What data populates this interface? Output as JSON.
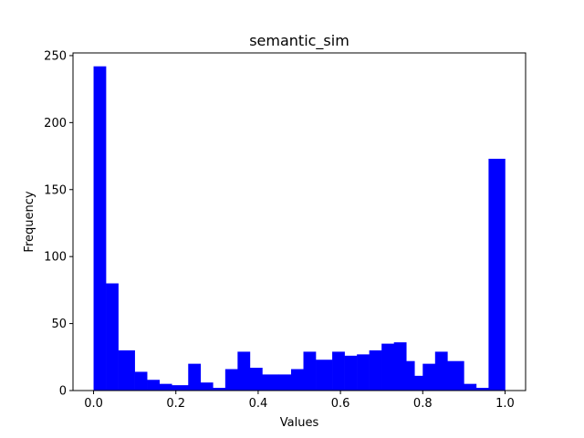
{
  "chart_data": {
    "type": "bar",
    "title": "semantic_sim",
    "xlabel": "Values",
    "ylabel": "Frequency",
    "xlim": [
      -0.05,
      1.05
    ],
    "ylim": [
      0,
      252
    ],
    "xticks": [
      0.0,
      0.2,
      0.4,
      0.6,
      0.8,
      1.0
    ],
    "xtick_labels": [
      "0.0",
      "0.2",
      "0.4",
      "0.6",
      "0.8",
      "1.0"
    ],
    "yticks": [
      0,
      50,
      100,
      150,
      200,
      250
    ],
    "ytick_labels": [
      "0",
      "50",
      "100",
      "150",
      "200",
      "250"
    ],
    "grid": false,
    "bar_color": "#0000ff",
    "bins": [
      {
        "x0": 0.0,
        "x1": 0.03,
        "value": 242
      },
      {
        "x0": 0.03,
        "x1": 0.06,
        "value": 80
      },
      {
        "x0": 0.06,
        "x1": 0.1,
        "value": 30
      },
      {
        "x0": 0.1,
        "x1": 0.13,
        "value": 14
      },
      {
        "x0": 0.13,
        "x1": 0.16,
        "value": 8
      },
      {
        "x0": 0.16,
        "x1": 0.19,
        "value": 5
      },
      {
        "x0": 0.19,
        "x1": 0.23,
        "value": 4
      },
      {
        "x0": 0.23,
        "x1": 0.26,
        "value": 20
      },
      {
        "x0": 0.26,
        "x1": 0.29,
        "value": 6
      },
      {
        "x0": 0.29,
        "x1": 0.32,
        "value": 2
      },
      {
        "x0": 0.32,
        "x1": 0.35,
        "value": 16
      },
      {
        "x0": 0.35,
        "x1": 0.38,
        "value": 29
      },
      {
        "x0": 0.38,
        "x1": 0.41,
        "value": 17
      },
      {
        "x0": 0.41,
        "x1": 0.45,
        "value": 12
      },
      {
        "x0": 0.45,
        "x1": 0.48,
        "value": 12
      },
      {
        "x0": 0.48,
        "x1": 0.51,
        "value": 16
      },
      {
        "x0": 0.51,
        "x1": 0.54,
        "value": 29
      },
      {
        "x0": 0.54,
        "x1": 0.58,
        "value": 23
      },
      {
        "x0": 0.58,
        "x1": 0.61,
        "value": 29
      },
      {
        "x0": 0.61,
        "x1": 0.64,
        "value": 26
      },
      {
        "x0": 0.64,
        "x1": 0.67,
        "value": 27
      },
      {
        "x0": 0.67,
        "x1": 0.7,
        "value": 30
      },
      {
        "x0": 0.7,
        "x1": 0.73,
        "value": 35
      },
      {
        "x0": 0.73,
        "x1": 0.76,
        "value": 36
      },
      {
        "x0": 0.76,
        "x1": 0.78,
        "value": 22
      },
      {
        "x0": 0.78,
        "x1": 0.8,
        "value": 11
      },
      {
        "x0": 0.8,
        "x1": 0.83,
        "value": 20
      },
      {
        "x0": 0.83,
        "x1": 0.86,
        "value": 29
      },
      {
        "x0": 0.86,
        "x1": 0.9,
        "value": 22
      },
      {
        "x0": 0.9,
        "x1": 0.93,
        "value": 5
      },
      {
        "x0": 0.93,
        "x1": 0.96,
        "value": 2
      },
      {
        "x0": 0.96,
        "x1": 1.0,
        "value": 173
      }
    ]
  }
}
